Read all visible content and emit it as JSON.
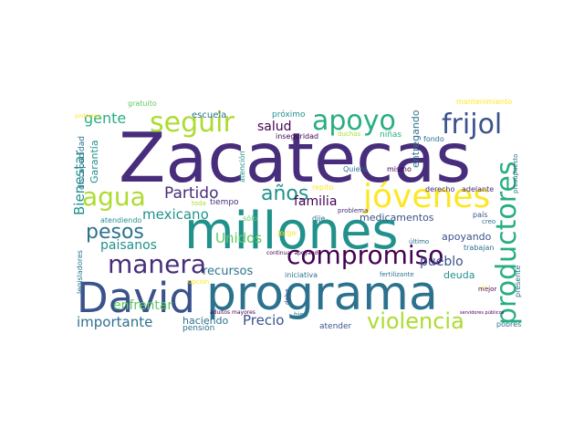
{
  "palette": {
    "dark_purple": "#440154",
    "indigo": "#472d7b",
    "blue": "#3b528b",
    "steel": "#2c728e",
    "teal": "#21918c",
    "green": "#28ae80",
    "lime_green": "#5ec962",
    "yellow_green": "#addc30",
    "yellow": "#fde725"
  },
  "words": [
    {
      "text": "Zacatecas"
    },
    {
      "text": "millones"
    },
    {
      "text": "David"
    },
    {
      "text": "programa"
    },
    {
      "text": "jóvenes"
    },
    {
      "text": "productores"
    },
    {
      "text": "apoyo"
    },
    {
      "text": "seguir"
    },
    {
      "text": "frijol"
    },
    {
      "text": "compromiso"
    },
    {
      "text": "manera"
    },
    {
      "text": "agua"
    },
    {
      "text": "violencia"
    },
    {
      "text": "pesos"
    },
    {
      "text": "años"
    },
    {
      "text": "Partido"
    },
    {
      "text": "Bienestar"
    },
    {
      "text": "gente"
    },
    {
      "text": "salud"
    },
    {
      "text": "familia"
    },
    {
      "text": "mexicano"
    },
    {
      "text": "Unidos"
    },
    {
      "text": "recursos"
    },
    {
      "text": "paisanos"
    },
    {
      "text": "pueblo"
    },
    {
      "text": "importante"
    },
    {
      "text": "Precio"
    },
    {
      "text": "enfrentar"
    },
    {
      "text": "deuda"
    },
    {
      "text": "haciendo"
    },
    {
      "text": "medicamentos"
    },
    {
      "text": "apoyando"
    },
    {
      "text": "entregando"
    },
    {
      "text": "Garantía"
    },
    {
      "text": "discapacidad"
    },
    {
      "text": "escuela"
    },
    {
      "text": "gratuito"
    },
    {
      "text": "podemos"
    },
    {
      "text": "próximo"
    },
    {
      "text": "inseguridad"
    },
    {
      "text": "duchas"
    },
    {
      "text": "niñas"
    },
    {
      "text": "mantenimiento"
    },
    {
      "text": "fondo"
    },
    {
      "text": "presupuesto"
    },
    {
      "text": "adelante"
    },
    {
      "text": "derecho"
    },
    {
      "text": "Quiero"
    },
    {
      "text": "mismo"
    },
    {
      "text": "atención"
    },
    {
      "text": "tiempo"
    },
    {
      "text": "toda"
    },
    {
      "text": "repito"
    },
    {
      "text": "problema"
    },
    {
      "text": "sólo"
    },
    {
      "text": "dije"
    },
    {
      "text": "Jorge"
    },
    {
      "text": "atendiendo"
    },
    {
      "text": "legisladores"
    },
    {
      "text": "país"
    },
    {
      "text": "creo"
    },
    {
      "text": "trabajan"
    },
    {
      "text": "último"
    },
    {
      "text": "mejor"
    },
    {
      "text": "continuar apoyando"
    },
    {
      "text": "iniciativa"
    },
    {
      "text": "fertilizante"
    },
    {
      "text": "opción"
    },
    {
      "text": "debe"
    },
    {
      "text": "ir"
    },
    {
      "text": "adultos mayores"
    },
    {
      "text": "bien"
    },
    {
      "text": "servidores públicos"
    },
    {
      "text": "pensión"
    },
    {
      "text": "atender"
    },
    {
      "text": "presente"
    },
    {
      "text": "pobres"
    }
  ]
}
